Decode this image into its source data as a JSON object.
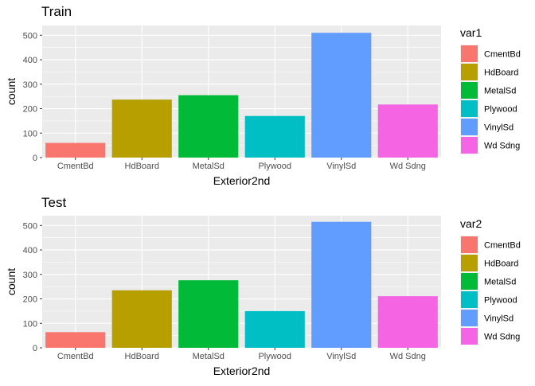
{
  "chart_data": [
    {
      "type": "bar",
      "title": "Train",
      "xlabel": "Exterior2nd",
      "ylabel": "count",
      "categories": [
        "CmentBd",
        "HdBoard",
        "MetalSd",
        "Plywood",
        "VinylSd",
        "Wd Sdng"
      ],
      "values": [
        60,
        237,
        255,
        170,
        510,
        217
      ],
      "ylim": [
        0,
        540
      ],
      "yticks": [
        0,
        100,
        200,
        300,
        400,
        500
      ],
      "grid": true,
      "legend": {
        "title": "var1",
        "position": "right",
        "entries": [
          "CmentBd",
          "HdBoard",
          "MetalSd",
          "Plywood",
          "VinylSd",
          "Wd Sdng"
        ]
      },
      "colors": [
        "#F8766D",
        "#B79F00",
        "#00BA38",
        "#00BFC4",
        "#619CFF",
        "#F564E3"
      ]
    },
    {
      "type": "bar",
      "title": "Test",
      "xlabel": "Exterior2nd",
      "ylabel": "count",
      "categories": [
        "CmentBd",
        "HdBoard",
        "MetalSd",
        "Plywood",
        "VinylSd",
        "Wd Sdng"
      ],
      "values": [
        64,
        235,
        276,
        150,
        515,
        211
      ],
      "ylim": [
        0,
        540
      ],
      "yticks": [
        0,
        100,
        200,
        300,
        400,
        500
      ],
      "grid": true,
      "legend": {
        "title": "var2",
        "position": "right",
        "entries": [
          "CmentBd",
          "HdBoard",
          "MetalSd",
          "Plywood",
          "VinylSd",
          "Wd Sdng"
        ]
      },
      "colors": [
        "#F8766D",
        "#B79F00",
        "#00BA38",
        "#00BFC4",
        "#619CFF",
        "#F564E3"
      ]
    }
  ]
}
